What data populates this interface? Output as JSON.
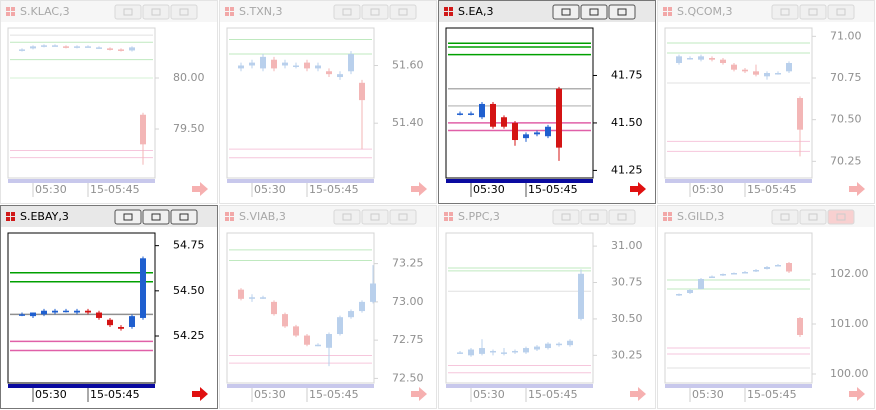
{
  "palette": {
    "active": {
      "up": "#1f5fcf",
      "down": "#d41414",
      "frame": "#000000",
      "text": "#000000",
      "bar": "#0a0aa0",
      "arrow": "#e01010"
    },
    "inactive": {
      "up": "#b9d0ec",
      "down": "#f3b6b6",
      "frame": "#d4d4d4",
      "text": "#a8a8a8",
      "bar": "#c8c8ec",
      "arrow": "#f6b0b0"
    }
  },
  "windows": [
    {
      "title": "S.KLAC,3",
      "active": false,
      "ylim": [
        79.02,
        80.49
      ],
      "yticks": [
        {
          "value": 80,
          "label": "80.00"
        },
        {
          "value": 79.5,
          "label": "79.50"
        }
      ],
      "xlabels": [
        "05:30",
        "15-05:45"
      ],
      "levels": [
        {
          "value": 80.42,
          "color": "#e0e0e0"
        },
        {
          "value": 80.35,
          "color": "#bfe9bf"
        },
        {
          "value": 80.18,
          "color": "#bfe9bf"
        },
        {
          "value": 80.0,
          "color": "#d6f2d6"
        },
        {
          "value": 79.29,
          "color": "#f6c6dc"
        },
        {
          "value": 79.22,
          "color": "#f6c6dc"
        }
      ],
      "candles": [
        [
          80.27,
          80.28,
          80.29,
          80.26
        ],
        [
          80.29,
          80.31,
          80.32,
          80.28
        ],
        [
          80.31,
          80.32,
          80.33,
          80.3
        ],
        [
          80.32,
          80.32,
          80.33,
          80.31
        ],
        [
          80.31,
          80.3,
          80.32,
          80.29
        ],
        [
          80.3,
          80.31,
          80.32,
          80.29
        ],
        [
          80.31,
          80.31,
          80.32,
          80.3
        ],
        [
          80.3,
          80.3,
          80.31,
          80.29
        ],
        [
          80.29,
          80.28,
          80.3,
          80.27
        ],
        [
          80.28,
          80.27,
          80.29,
          80.26
        ],
        [
          80.27,
          80.3,
          80.31,
          80.26
        ],
        [
          79.64,
          79.35,
          79.66,
          79.15
        ]
      ]
    },
    {
      "title": "S.TXN,3",
      "active": false,
      "ylim": [
        51.21,
        51.73
      ],
      "yticks": [
        {
          "value": 51.6,
          "label": "51.60"
        },
        {
          "value": 51.4,
          "label": "51.40"
        }
      ],
      "xlabels": [
        "05:30",
        "15-05:45"
      ],
      "levels": [
        {
          "value": 51.69,
          "color": "#bfe9bf"
        },
        {
          "value": 51.64,
          "color": "#bfe9bf"
        },
        {
          "value": 51.31,
          "color": "#f6c6dc"
        },
        {
          "value": 51.28,
          "color": "#f6c6dc"
        }
      ],
      "candles": [
        [
          51.59,
          51.6,
          51.61,
          51.58
        ],
        [
          51.6,
          51.61,
          51.62,
          51.59
        ],
        [
          51.59,
          51.63,
          51.64,
          51.58
        ],
        [
          51.62,
          51.59,
          51.63,
          51.58
        ],
        [
          51.6,
          51.61,
          51.62,
          51.59
        ],
        [
          51.6,
          51.6,
          51.61,
          51.59
        ],
        [
          51.61,
          51.59,
          51.62,
          51.58
        ],
        [
          51.59,
          51.6,
          51.61,
          51.58
        ],
        [
          51.58,
          51.57,
          51.59,
          51.56
        ],
        [
          51.56,
          51.57,
          51.58,
          51.55
        ],
        [
          51.58,
          51.64,
          51.65,
          51.57
        ],
        [
          51.54,
          51.48,
          51.55,
          51.31
        ]
      ]
    },
    {
      "title": "S.EA,3",
      "active": true,
      "ylim": [
        41.21,
        42.0
      ],
      "yticks": [
        {
          "value": 41.75,
          "label": "41.75"
        },
        {
          "value": 41.5,
          "label": "41.50"
        },
        {
          "value": 41.25,
          "label": "41.25"
        }
      ],
      "xlabels": [
        "05:30",
        "15-05:45"
      ],
      "levels": [
        {
          "value": 41.92,
          "color": "#00a000"
        },
        {
          "value": 41.9,
          "color": "#00a000"
        },
        {
          "value": 41.86,
          "color": "#00a000"
        },
        {
          "value": 41.68,
          "color": "#b0b0b0"
        },
        {
          "value": 41.59,
          "color": "#c8c8c8"
        },
        {
          "value": 41.5,
          "color": "#e060a8"
        },
        {
          "value": 41.46,
          "color": "#e060a8"
        }
      ],
      "candles": [
        [
          41.55,
          41.55,
          41.56,
          41.54
        ],
        [
          41.55,
          41.55,
          41.56,
          41.54
        ],
        [
          41.53,
          41.6,
          41.61,
          41.52
        ],
        [
          41.6,
          41.48,
          41.61,
          41.47
        ],
        [
          41.53,
          41.48,
          41.54,
          41.47
        ],
        [
          41.5,
          41.41,
          41.51,
          41.38
        ],
        [
          41.42,
          41.44,
          41.45,
          41.4
        ],
        [
          41.44,
          41.45,
          41.46,
          41.43
        ],
        [
          41.43,
          41.48,
          41.49,
          41.42
        ],
        [
          41.68,
          41.37,
          41.69,
          41.3
        ]
      ]
    },
    {
      "title": "S.QCOM,3",
      "active": false,
      "ylim": [
        70.15,
        71.05
      ],
      "yticks": [
        {
          "value": 71,
          "label": "71.00"
        },
        {
          "value": 70.75,
          "label": "70.75"
        },
        {
          "value": 70.5,
          "label": "70.50"
        },
        {
          "value": 70.25,
          "label": "70.25"
        }
      ],
      "xlabels": [
        "05:30",
        "15-05:45"
      ],
      "levels": [
        {
          "value": 70.96,
          "color": "#bfe9bf"
        },
        {
          "value": 70.9,
          "color": "#bfe9bf"
        },
        {
          "value": 70.72,
          "color": "#e0e0e0"
        },
        {
          "value": 70.37,
          "color": "#f6c6dc"
        },
        {
          "value": 70.31,
          "color": "#f6c6dc"
        }
      ],
      "candles": [
        [
          70.84,
          70.88,
          70.89,
          70.83
        ],
        [
          70.87,
          70.87,
          70.88,
          70.86
        ],
        [
          70.86,
          70.88,
          70.89,
          70.85
        ],
        [
          70.87,
          70.86,
          70.88,
          70.85
        ],
        [
          70.86,
          70.84,
          70.87,
          70.83
        ],
        [
          70.83,
          70.8,
          70.84,
          70.79
        ],
        [
          70.8,
          70.79,
          70.81,
          70.78
        ],
        [
          70.79,
          70.77,
          70.83,
          70.76
        ],
        [
          70.76,
          70.78,
          70.79,
          70.74
        ],
        [
          70.78,
          70.78,
          70.79,
          70.77
        ],
        [
          70.79,
          70.84,
          70.85,
          70.78
        ],
        [
          70.63,
          70.44,
          70.64,
          70.28
        ]
      ]
    },
    {
      "title": "S.EBAY,3",
      "active": true,
      "ylim": [
        53.99,
        54.82
      ],
      "yticks": [
        {
          "value": 54.75,
          "label": "54.75"
        },
        {
          "value": 54.5,
          "label": "54.50"
        },
        {
          "value": 54.25,
          "label": "54.25"
        }
      ],
      "xlabels": [
        "05:30",
        "15-05:45"
      ],
      "levels": [
        {
          "value": 54.6,
          "color": "#00a000"
        },
        {
          "value": 54.55,
          "color": "#00a000"
        },
        {
          "value": 54.37,
          "color": "#909090"
        },
        {
          "value": 54.22,
          "color": "#e060a8"
        },
        {
          "value": 54.17,
          "color": "#e060a8"
        }
      ],
      "candles": [
        [
          54.37,
          54.37,
          54.38,
          54.36
        ],
        [
          54.36,
          54.38,
          54.38,
          54.35
        ],
        [
          54.37,
          54.39,
          54.4,
          54.36
        ],
        [
          54.38,
          54.39,
          54.4,
          54.37
        ],
        [
          54.39,
          54.39,
          54.4,
          54.38
        ],
        [
          54.38,
          54.39,
          54.4,
          54.37
        ],
        [
          54.39,
          54.38,
          54.4,
          54.37
        ],
        [
          54.38,
          54.35,
          54.39,
          54.34
        ],
        [
          54.34,
          54.31,
          54.35,
          54.3
        ],
        [
          54.3,
          54.29,
          54.31,
          54.28
        ],
        [
          54.3,
          54.36,
          54.37,
          54.29
        ],
        [
          54.35,
          54.68,
          54.69,
          54.34
        ]
      ]
    },
    {
      "title": "S.VIAB,3",
      "active": false,
      "ylim": [
        72.47,
        73.45
      ],
      "yticks": [
        {
          "value": 73.25,
          "label": "73.25"
        },
        {
          "value": 73,
          "label": "73.00"
        },
        {
          "value": 72.75,
          "label": "72.75"
        },
        {
          "value": 72.5,
          "label": "72.50"
        }
      ],
      "xlabels": [
        "05:30",
        "15-05:45"
      ],
      "levels": [
        {
          "value": 73.34,
          "color": "#bfe9bf"
        },
        {
          "value": 73.27,
          "color": "#bfe9bf"
        },
        {
          "value": 72.65,
          "color": "#f6c6dc"
        },
        {
          "value": 72.6,
          "color": "#f6c6dc"
        }
      ],
      "candles": [
        [
          73.08,
          73.02,
          73.09,
          73.01
        ],
        [
          73.03,
          73.03,
          73.05,
          73.0
        ],
        [
          73.03,
          73.03,
          73.04,
          73.02
        ],
        [
          73.0,
          72.92,
          73.01,
          72.91
        ],
        [
          72.92,
          72.84,
          72.93,
          72.83
        ],
        [
          72.84,
          72.78,
          72.85,
          72.77
        ],
        [
          72.78,
          72.72,
          72.79,
          72.71
        ],
        [
          72.72,
          72.72,
          72.73,
          72.71
        ],
        [
          72.7,
          72.79,
          72.8,
          72.58
        ],
        [
          72.79,
          72.9,
          72.91,
          72.78
        ],
        [
          72.9,
          72.94,
          72.95,
          72.89
        ],
        [
          72.94,
          73.0,
          73.01,
          72.93
        ],
        [
          73.0,
          73.12,
          73.24,
          72.99
        ]
      ]
    },
    {
      "title": "S.PPC,3",
      "active": false,
      "ylim": [
        30.06,
        31.09
      ],
      "yticks": [
        {
          "value": 31,
          "label": "31.00"
        },
        {
          "value": 30.75,
          "label": "30.75"
        },
        {
          "value": 30.5,
          "label": "30.50"
        },
        {
          "value": 30.25,
          "label": "30.25"
        }
      ],
      "xlabels": [
        "05:30",
        "15-05:45"
      ],
      "levels": [
        {
          "value": 30.85,
          "color": "#bfe9bf"
        },
        {
          "value": 30.83,
          "color": "#bfe9bf"
        },
        {
          "value": 30.69,
          "color": "#e0e0e0"
        },
        {
          "value": 30.18,
          "color": "#f6c6dc"
        },
        {
          "value": 30.13,
          "color": "#f6c6dc"
        }
      ],
      "candles": [
        [
          30.27,
          30.27,
          30.28,
          30.26
        ],
        [
          30.25,
          30.29,
          30.3,
          30.24
        ],
        [
          30.26,
          30.3,
          30.36,
          30.25
        ],
        [
          30.27,
          30.28,
          30.29,
          30.25
        ],
        [
          30.26,
          30.27,
          30.3,
          30.25
        ],
        [
          30.27,
          30.28,
          30.29,
          30.26
        ],
        [
          30.27,
          30.3,
          30.31,
          30.26
        ],
        [
          30.29,
          30.31,
          30.32,
          30.28
        ],
        [
          30.3,
          30.33,
          30.34,
          30.29
        ],
        [
          30.32,
          30.33,
          30.34,
          30.31
        ],
        [
          30.32,
          30.35,
          30.36,
          30.31
        ],
        [
          30.5,
          30.81,
          30.84,
          30.49
        ]
      ]
    },
    {
      "title": "S.GILD,3",
      "active": false,
      "ylim": [
        99.82,
        102.82
      ],
      "yticks": [
        {
          "value": 102,
          "label": "102.00"
        },
        {
          "value": 101,
          "label": "101.00"
        },
        {
          "value": 100,
          "label": "100.00"
        }
      ],
      "xlabels": [
        "05:30",
        "15-05:45"
      ],
      "levels": [
        {
          "value": 101.88,
          "color": "#bfe9bf"
        },
        {
          "value": 101.7,
          "color": "#bfe9bf"
        },
        {
          "value": 100.52,
          "color": "#f6c6dc"
        },
        {
          "value": 100.4,
          "color": "#f6c6dc"
        },
        {
          "value": 100.12,
          "color": "#e0e0e0"
        }
      ],
      "candles": [
        [
          101.58,
          101.6,
          101.61,
          101.56
        ],
        [
          101.62,
          101.68,
          101.7,
          101.6
        ],
        [
          101.7,
          101.9,
          101.92,
          101.69
        ],
        [
          101.93,
          101.95,
          101.97,
          101.92
        ],
        [
          101.97,
          102.0,
          102.01,
          101.96
        ],
        [
          102.01,
          102.02,
          102.03,
          102.0
        ],
        [
          102.02,
          102.04,
          102.06,
          102.01
        ],
        [
          102.05,
          102.08,
          102.1,
          102.04
        ],
        [
          102.1,
          102.14,
          102.16,
          102.09
        ],
        [
          102.16,
          102.18,
          102.2,
          102.15
        ],
        [
          102.22,
          102.05,
          102.24,
          102.02
        ],
        [
          101.12,
          100.78,
          101.14,
          100.74
        ]
      ]
    }
  ]
}
